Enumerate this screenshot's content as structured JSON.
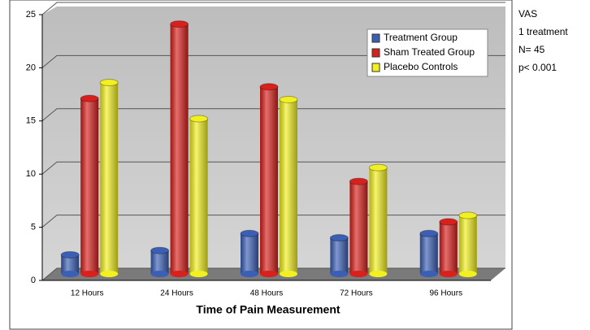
{
  "chart_data": {
    "type": "bar3d",
    "x_label": "Time of Pain Measurement",
    "categories": [
      "12 Hours",
      "24 Hours",
      "48 Hours",
      "72 Hours",
      "96 Hours"
    ],
    "series": [
      {
        "name": "Treatment Group",
        "color": "#3b5fb5",
        "values": [
          1.8,
          2.2,
          3.8,
          3.4,
          3.8
        ]
      },
      {
        "name": "Sham Treated Group",
        "color": "#d8201c",
        "values": [
          16.5,
          23.5,
          17.6,
          8.7,
          4.9
        ]
      },
      {
        "name": "Placebo Controls",
        "color": "#f2f01e",
        "values": [
          18,
          14.6,
          16.4,
          10,
          5.5
        ]
      }
    ],
    "ylim": [
      0,
      25
    ],
    "yticks": [
      0,
      5,
      10,
      15,
      20,
      25
    ],
    "grid": true,
    "legend": "upper right",
    "annotations": [
      "VAS",
      "1 treatment",
      "N= 45",
      "p< 0.001"
    ]
  }
}
